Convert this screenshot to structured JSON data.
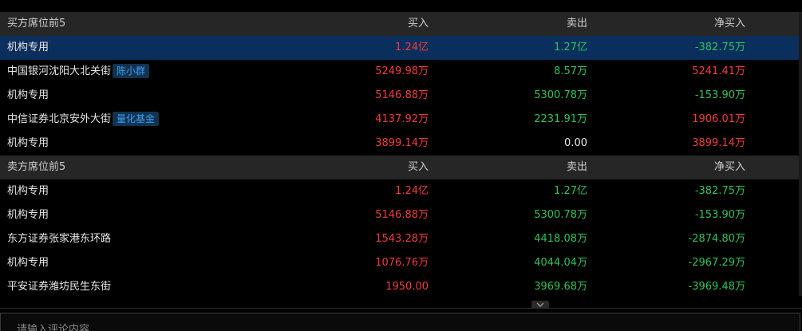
{
  "buy_table": {
    "header": {
      "name": "买方席位前5",
      "buy": "买入",
      "sell": "卖出",
      "net": "净买入"
    },
    "rows": [
      {
        "name": "机构专用",
        "tag": "",
        "buy": "1.24亿",
        "sell": "1.27亿",
        "net": "-382.75万"
      },
      {
        "name": "中国银河沈阳大北关街",
        "tag": "陈小群",
        "buy": "5249.98万",
        "sell": "8.57万",
        "net": "5241.41万"
      },
      {
        "name": "机构专用",
        "tag": "",
        "buy": "5146.88万",
        "sell": "5300.78万",
        "net": "-153.90万"
      },
      {
        "name": "中信证券北京安外大街",
        "tag": "量化基金",
        "buy": "4137.92万",
        "sell": "2231.91万",
        "net": "1906.01万"
      },
      {
        "name": "机构专用",
        "tag": "",
        "buy": "3899.14万",
        "sell": "0.00",
        "net": "3899.14万"
      }
    ]
  },
  "sell_table": {
    "header": {
      "name": "卖方席位前5",
      "buy": "买入",
      "sell": "卖出",
      "net": "净买入"
    },
    "rows": [
      {
        "name": "机构专用",
        "buy": "1.24亿",
        "sell": "1.27亿",
        "net": "-382.75万"
      },
      {
        "name": "机构专用",
        "buy": "5146.88万",
        "sell": "5300.78万",
        "net": "-153.90万"
      },
      {
        "name": "东方证券张家港东环路",
        "buy": "1543.28万",
        "sell": "4418.08万",
        "net": "-2874.80万"
      },
      {
        "name": "机构专用",
        "buy": "1076.76万",
        "sell": "4044.04万",
        "net": "-2967.29万"
      },
      {
        "name": "平安证券潍坊民生东街",
        "buy": "1950.00",
        "sell": "3969.68万",
        "net": "-3969.48万"
      }
    ]
  },
  "comment": {
    "placeholder": "请输入评论内容"
  },
  "colors": {
    "up": "#f03c3c",
    "down": "#2fc25b",
    "neutral": "#e8e8e8",
    "tag": "#3aa0f0",
    "selected_row": "#0a2f5c"
  },
  "icons": {
    "collapse": "chevron-down-icon"
  }
}
